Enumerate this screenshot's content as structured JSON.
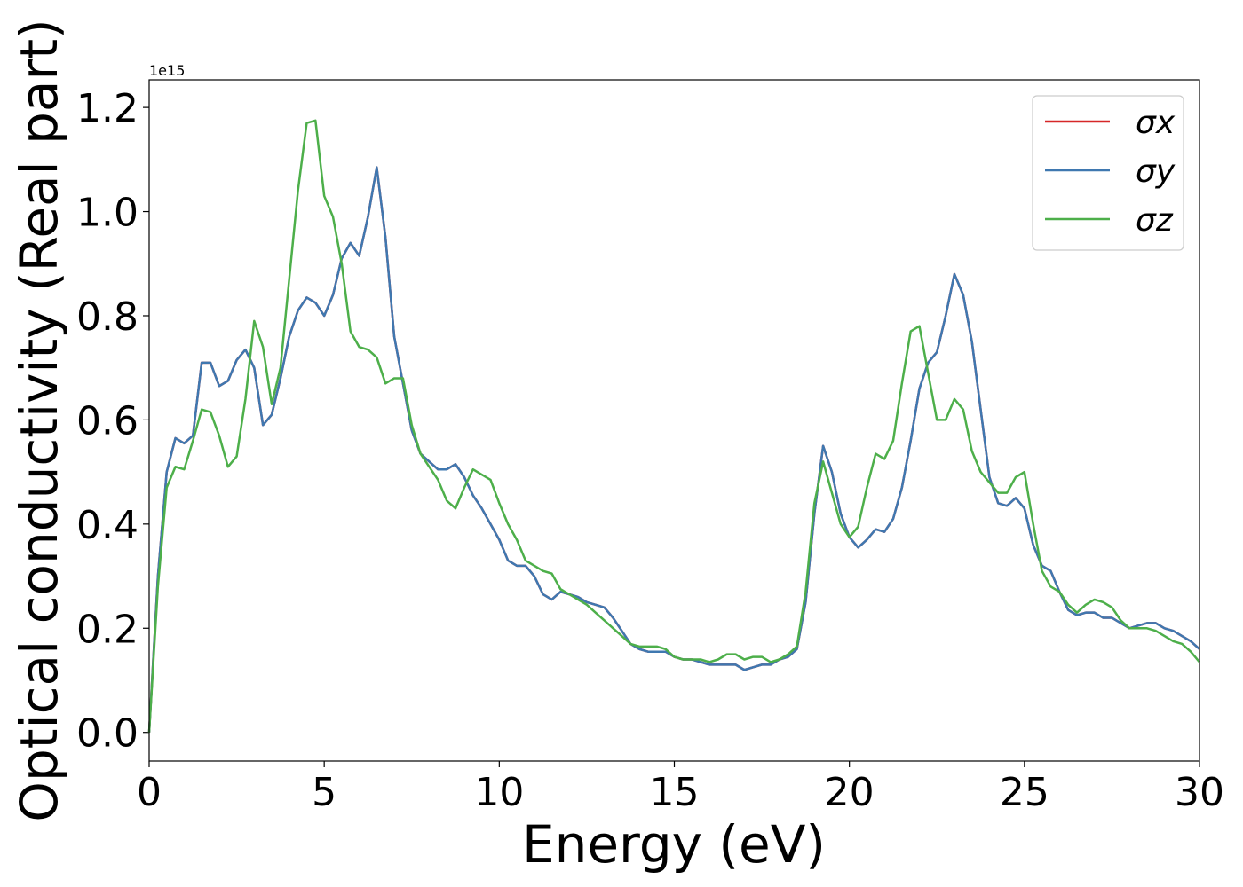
{
  "chart_data": {
    "type": "line",
    "xlabel": "Energy (eV)",
    "ylabel": "Optical conductivity (Real part)",
    "y_offset_label": "1e15",
    "xlim": [
      0,
      30
    ],
    "xticks": [
      0,
      5,
      10,
      15,
      20,
      25,
      30
    ],
    "ylim": [
      -0.055,
      1.253
    ],
    "yticks": [
      {
        "value": 0,
        "label": "0.0"
      },
      {
        "value": 0.2,
        "label": "0.2"
      },
      {
        "value": 0.4,
        "label": "0.4"
      },
      {
        "value": 0.6,
        "label": "0.6"
      },
      {
        "value": 0.8,
        "label": "0.8"
      },
      {
        "value": 1.0,
        "label": "1.0"
      },
      {
        "value": 1.2,
        "label": "1.2"
      }
    ],
    "legend": "upper right",
    "x": [
      0,
      0.25,
      0.5,
      0.75,
      1,
      1.25,
      1.5,
      1.75,
      2,
      2.25,
      2.5,
      2.75,
      3,
      3.25,
      3.5,
      3.75,
      4,
      4.25,
      4.5,
      4.75,
      5,
      5.25,
      5.5,
      5.75,
      6,
      6.25,
      6.5,
      6.75,
      7,
      7.25,
      7.5,
      7.75,
      8,
      8.25,
      8.5,
      8.75,
      9,
      9.25,
      9.5,
      9.75,
      10,
      10.25,
      10.5,
      10.75,
      11,
      11.25,
      11.5,
      11.75,
      12,
      12.25,
      12.5,
      12.75,
      13,
      13.25,
      13.5,
      13.75,
      14,
      14.25,
      14.5,
      14.75,
      15,
      15.25,
      15.5,
      15.75,
      16,
      16.25,
      16.5,
      16.75,
      17,
      17.25,
      17.5,
      17.75,
      18,
      18.25,
      18.5,
      18.75,
      19,
      19.25,
      19.5,
      19.75,
      20,
      20.25,
      20.5,
      20.75,
      21,
      21.25,
      21.5,
      21.75,
      22,
      22.25,
      22.5,
      22.75,
      23,
      23.25,
      23.5,
      23.75,
      24,
      24.25,
      24.5,
      24.75,
      25,
      25.25,
      25.5,
      25.75,
      26,
      26.25,
      26.5,
      26.75,
      27,
      27.25,
      27.5,
      27.75,
      28,
      28.25,
      28.5,
      28.75,
      29,
      29.25,
      29.5,
      29.75,
      30
    ],
    "series": [
      {
        "name": "σx",
        "color": "#d62728",
        "values": [
          0,
          0.3,
          0.5,
          0.565,
          0.555,
          0.57,
          0.71,
          0.71,
          0.665,
          0.675,
          0.715,
          0.735,
          0.7,
          0.59,
          0.61,
          0.68,
          0.76,
          0.81,
          0.835,
          0.825,
          0.8,
          0.84,
          0.91,
          0.94,
          0.915,
          0.99,
          1.085,
          0.95,
          0.76,
          0.67,
          0.58,
          0.535,
          0.52,
          0.505,
          0.505,
          0.515,
          0.49,
          0.455,
          0.43,
          0.4,
          0.37,
          0.33,
          0.32,
          0.32,
          0.3,
          0.265,
          0.255,
          0.27,
          0.265,
          0.26,
          0.25,
          0.245,
          0.24,
          0.22,
          0.195,
          0.17,
          0.16,
          0.155,
          0.155,
          0.155,
          0.145,
          0.14,
          0.14,
          0.135,
          0.13,
          0.13,
          0.13,
          0.13,
          0.12,
          0.125,
          0.13,
          0.13,
          0.14,
          0.145,
          0.16,
          0.25,
          0.42,
          0.55,
          0.5,
          0.42,
          0.375,
          0.355,
          0.37,
          0.39,
          0.385,
          0.41,
          0.47,
          0.56,
          0.66,
          0.71,
          0.73,
          0.8,
          0.88,
          0.84,
          0.75,
          0.62,
          0.49,
          0.44,
          0.435,
          0.45,
          0.43,
          0.36,
          0.32,
          0.31,
          0.27,
          0.235,
          0.225,
          0.23,
          0.23,
          0.22,
          0.22,
          0.21,
          0.2,
          0.205,
          0.21,
          0.21,
          0.2,
          0.195,
          0.185,
          0.175,
          0.16
        ]
      },
      {
        "name": "σy",
        "color": "#3f78b0",
        "values": [
          0,
          0.3,
          0.5,
          0.565,
          0.555,
          0.57,
          0.71,
          0.71,
          0.665,
          0.675,
          0.715,
          0.735,
          0.7,
          0.59,
          0.61,
          0.68,
          0.76,
          0.81,
          0.835,
          0.825,
          0.8,
          0.84,
          0.91,
          0.94,
          0.915,
          0.99,
          1.085,
          0.95,
          0.76,
          0.67,
          0.58,
          0.535,
          0.52,
          0.505,
          0.505,
          0.515,
          0.49,
          0.455,
          0.43,
          0.4,
          0.37,
          0.33,
          0.32,
          0.32,
          0.3,
          0.265,
          0.255,
          0.27,
          0.265,
          0.26,
          0.25,
          0.245,
          0.24,
          0.22,
          0.195,
          0.17,
          0.16,
          0.155,
          0.155,
          0.155,
          0.145,
          0.14,
          0.14,
          0.135,
          0.13,
          0.13,
          0.13,
          0.13,
          0.12,
          0.125,
          0.13,
          0.13,
          0.14,
          0.145,
          0.16,
          0.25,
          0.42,
          0.55,
          0.5,
          0.42,
          0.375,
          0.355,
          0.37,
          0.39,
          0.385,
          0.41,
          0.47,
          0.56,
          0.66,
          0.71,
          0.73,
          0.8,
          0.88,
          0.84,
          0.75,
          0.62,
          0.49,
          0.44,
          0.435,
          0.45,
          0.43,
          0.36,
          0.32,
          0.31,
          0.27,
          0.235,
          0.225,
          0.23,
          0.23,
          0.22,
          0.22,
          0.21,
          0.2,
          0.205,
          0.21,
          0.21,
          0.2,
          0.195,
          0.185,
          0.175,
          0.16
        ]
      },
      {
        "name": "σz",
        "color": "#4daf4a",
        "values": [
          0,
          0.28,
          0.47,
          0.51,
          0.505,
          0.56,
          0.62,
          0.615,
          0.57,
          0.51,
          0.53,
          0.64,
          0.79,
          0.74,
          0.63,
          0.7,
          0.87,
          1.04,
          1.17,
          1.175,
          1.03,
          0.99,
          0.9,
          0.77,
          0.74,
          0.735,
          0.72,
          0.67,
          0.68,
          0.68,
          0.59,
          0.535,
          0.51,
          0.485,
          0.445,
          0.43,
          0.47,
          0.505,
          0.495,
          0.485,
          0.44,
          0.4,
          0.37,
          0.33,
          0.32,
          0.31,
          0.305,
          0.275,
          0.265,
          0.255,
          0.245,
          0.23,
          0.215,
          0.2,
          0.185,
          0.17,
          0.165,
          0.165,
          0.165,
          0.16,
          0.145,
          0.14,
          0.14,
          0.14,
          0.135,
          0.14,
          0.15,
          0.15,
          0.14,
          0.145,
          0.145,
          0.135,
          0.14,
          0.15,
          0.165,
          0.27,
          0.44,
          0.52,
          0.46,
          0.4,
          0.375,
          0.395,
          0.47,
          0.535,
          0.525,
          0.56,
          0.67,
          0.77,
          0.78,
          0.69,
          0.6,
          0.6,
          0.64,
          0.62,
          0.54,
          0.5,
          0.48,
          0.46,
          0.46,
          0.49,
          0.5,
          0.4,
          0.31,
          0.28,
          0.27,
          0.245,
          0.23,
          0.245,
          0.255,
          0.25,
          0.24,
          0.215,
          0.2,
          0.2,
          0.2,
          0.195,
          0.185,
          0.175,
          0.17,
          0.155,
          0.135
        ]
      }
    ]
  }
}
